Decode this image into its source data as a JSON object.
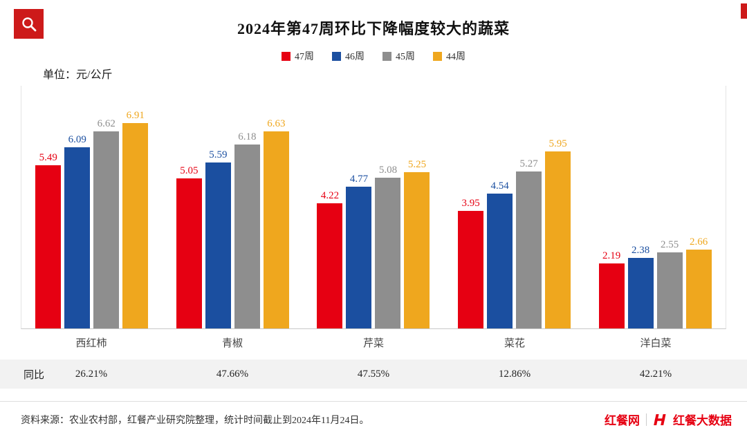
{
  "header": {
    "title": "2024年第47周环比下降幅度较大的蔬菜",
    "unit_label": "单位：元/公斤"
  },
  "legend": [
    {
      "label": "47周",
      "color": "#e60012"
    },
    {
      "label": "46周",
      "color": "#1b4fa0"
    },
    {
      "label": "45周",
      "color": "#8e8e8e"
    },
    {
      "label": "44周",
      "color": "#efa71e"
    }
  ],
  "chart_data": {
    "type": "bar",
    "title": "2024年第47周环比下降幅度较大的蔬菜",
    "ylabel": "元/公斤",
    "ylim": [
      0,
      7.5
    ],
    "grid": false,
    "legend_position": "top",
    "categories": [
      "西红柿",
      "青椒",
      "芹菜",
      "菜花",
      "洋白菜"
    ],
    "series": [
      {
        "name": "47周",
        "color": "#e60012",
        "values": [
          5.49,
          5.05,
          4.22,
          3.95,
          2.19
        ]
      },
      {
        "name": "46周",
        "color": "#1b4fa0",
        "values": [
          6.09,
          5.59,
          4.77,
          4.54,
          2.38
        ]
      },
      {
        "name": "45周",
        "color": "#8e8e8e",
        "values": [
          6.62,
          6.18,
          5.08,
          5.27,
          2.55
        ]
      },
      {
        "name": "44周",
        "color": "#efa71e",
        "values": [
          6.91,
          6.63,
          5.25,
          5.95,
          2.66
        ]
      }
    ]
  },
  "yoy_row": {
    "label": "同比",
    "values": [
      "26.21%",
      "47.66%",
      "47.55%",
      "12.86%",
      "42.21%"
    ]
  },
  "footer": {
    "source_text": "资料来源：农业农村部，红餐产业研究院整理，统计时间截止到2024年11月24日。",
    "brand_left": "红餐网",
    "brand_right": "红餐大数据"
  }
}
